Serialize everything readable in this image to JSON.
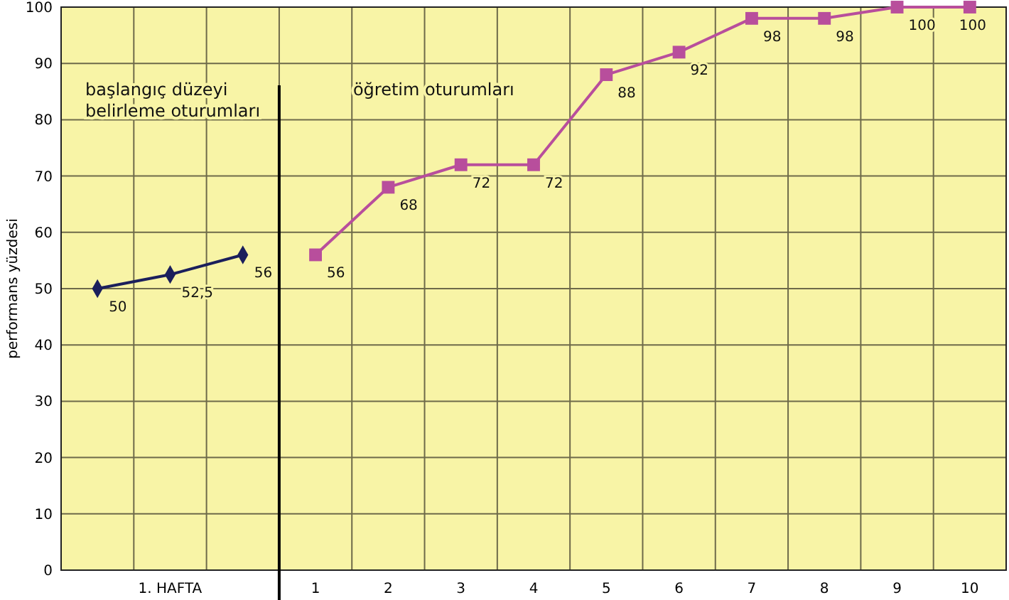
{
  "chart_data": {
    "type": "line",
    "ylabel": "performans yüzdesi",
    "categories": [
      null,
      "1. HAFTA",
      null,
      "1",
      "2",
      "3",
      "4",
      "5",
      "6",
      "7",
      "8",
      "9",
      "10"
    ],
    "series": [
      {
        "color": "#1b1f5c",
        "marker": "diamond",
        "values": [
          50,
          52.5,
          56,
          null,
          null,
          null,
          null,
          null,
          null,
          null,
          null,
          null,
          null
        ],
        "value_labels": [
          "50",
          "52,5",
          "56",
          null,
          null,
          null,
          null,
          null,
          null,
          null,
          null,
          null,
          null
        ]
      },
      {
        "color": "#b84e9c",
        "marker": "square",
        "values": [
          null,
          null,
          null,
          56,
          68,
          72,
          72,
          88,
          92,
          98,
          98,
          100,
          100
        ],
        "value_labels": [
          null,
          null,
          null,
          "56",
          "68",
          "72",
          "72",
          "88",
          "92",
          "98",
          "98",
          "100",
          "100"
        ]
      }
    ],
    "ylim": [
      0,
      100
    ],
    "yticks": [
      0,
      10,
      20,
      30,
      40,
      50,
      60,
      70,
      80,
      90,
      100
    ],
    "grid": true,
    "ref_lines": [
      {
        "axis": "x",
        "value": "1",
        "color": "#000000",
        "line_style": "solid"
      }
    ],
    "annotations": [
      "başlangıç düzeyi\nbelirleme oturumları",
      "öğretim oturumları"
    ]
  }
}
